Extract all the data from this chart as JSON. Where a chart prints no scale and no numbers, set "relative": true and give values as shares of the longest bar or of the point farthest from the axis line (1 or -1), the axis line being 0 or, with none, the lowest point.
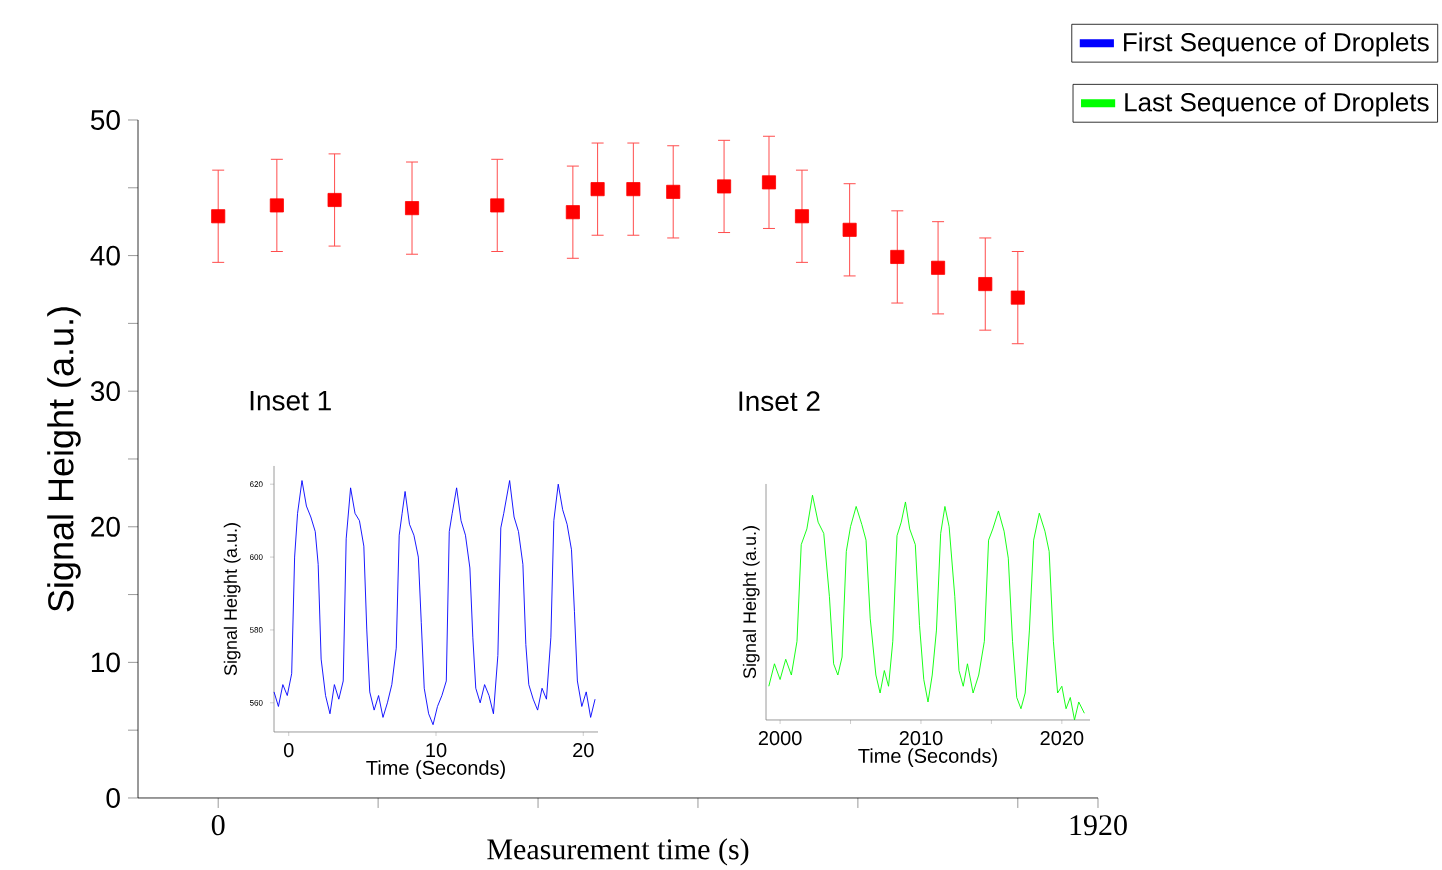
{
  "chart_data": [
    {
      "type": "scatter",
      "xlabel": "Measurement time (s)",
      "ylabel": "Signal Height (a.u.)",
      "color": "#ff0000",
      "marker": "square",
      "x": [
        0,
        128,
        254,
        423,
        609,
        774,
        828,
        906,
        993,
        1104,
        1202,
        1274,
        1378,
        1482,
        1571,
        1674,
        1745
      ],
      "values": [
        42.9,
        43.7,
        44.1,
        43.5,
        43.7,
        43.2,
        44.9,
        44.9,
        44.7,
        45.1,
        45.4,
        42.9,
        41.9,
        39.9,
        39.1,
        37.9,
        36.9
      ],
      "errors": [
        3.4,
        3.4,
        3.4,
        3.4,
        3.4,
        3.4,
        3.4,
        3.4,
        3.4,
        3.4,
        3.4,
        3.4,
        3.4,
        3.4,
        3.4,
        3.4,
        3.4
      ],
      "xlim": [
        -175,
        1920
      ],
      "xticks": [
        0,
        {
          "value": 349,
          "label": null
        },
        {
          "value": 698,
          "label": null
        },
        {
          "value": 1047,
          "label": null
        },
        {
          "value": 1396,
          "label": null
        },
        {
          "value": 1745,
          "label": null
        },
        1920
      ],
      "ylim": [
        0,
        50
      ],
      "yticks": [
        0,
        {
          "value": 5,
          "label": null
        },
        10,
        {
          "value": 15,
          "label": null
        },
        20,
        {
          "value": 25,
          "label": null
        },
        30,
        {
          "value": 35,
          "label": null
        },
        40,
        {
          "value": 45,
          "label": null
        },
        50
      ]
    },
    {
      "type": "line",
      "title": "Inset 1",
      "xlabel": "Time (Seconds)",
      "ylabel": "Signal Height (a.u.)",
      "legend": "top right",
      "series": [
        {
          "name": "First Sequence of Droplets",
          "color": "#0000ff",
          "x": [
            -1,
            -0.7,
            -0.4,
            -0.1,
            0.2,
            0.4,
            0.6,
            0.9,
            1.2,
            1.5,
            1.8,
            2.0,
            2.2,
            2.5,
            2.8,
            3.1,
            3.4,
            3.7,
            3.9,
            4.2,
            4.5,
            4.8,
            5.1,
            5.3,
            5.5,
            5.8,
            6.1,
            6.4,
            6.7,
            7.0,
            7.3,
            7.5,
            7.7,
            7.9,
            8.2,
            8.5,
            8.8,
            9.0,
            9.2,
            9.5,
            9.8,
            10.1,
            10.4,
            10.7,
            10.9,
            11.1,
            11.4,
            11.7,
            12.0,
            12.3,
            12.5,
            12.7,
            13.0,
            13.3,
            13.6,
            13.9,
            14.2,
            14.4,
            14.6,
            15.0,
            15.3,
            15.6,
            15.9,
            16.1,
            16.3,
            16.6,
            16.9,
            17.2,
            17.5,
            17.8,
            18.0,
            18.3,
            18.6,
            18.9,
            19.2,
            19.4,
            19.6,
            19.9,
            20.2,
            20.5,
            20.8
          ],
          "values": [
            563,
            559,
            565,
            562,
            568,
            600,
            612,
            621,
            614,
            611,
            607,
            598,
            572,
            562,
            557,
            565,
            561,
            566,
            605,
            619,
            612,
            610,
            603,
            580,
            563,
            558,
            562,
            556,
            560,
            565,
            575,
            606,
            612,
            618,
            609,
            606,
            600,
            582,
            564,
            557,
            554,
            559,
            562,
            566,
            607,
            612,
            619,
            610,
            606,
            597,
            578,
            564,
            560,
            565,
            562,
            557,
            573,
            608,
            612,
            621,
            611,
            607,
            598,
            576,
            565,
            561,
            558,
            564,
            561,
            578,
            610,
            620,
            613,
            609,
            602,
            585,
            566,
            559,
            563,
            556,
            561
          ]
        }
      ],
      "xlim": [
        -1,
        21
      ],
      "ylim": [
        552,
        625
      ],
      "xticks": [
        0,
        10,
        20
      ],
      "yticks": [
        560,
        580,
        600,
        620
      ]
    },
    {
      "type": "line",
      "title": "Inset 2",
      "xlabel": "Time (Seconds)",
      "ylabel": "Signal Height (a.u.)",
      "legend": "top right",
      "relative": true,
      "series": [
        {
          "name": "Last Sequence of Droplets",
          "color": "#00ff00",
          "x": [
            1999.2,
            1999.6,
            2000.0,
            2000.4,
            2000.8,
            2001.2,
            2001.5,
            2001.9,
            2002.3,
            2002.7,
            2003.1,
            2003.5,
            2003.8,
            2004.1,
            2004.4,
            2004.7,
            2005.0,
            2005.4,
            2005.8,
            2006.1,
            2006.4,
            2006.8,
            2007.1,
            2007.4,
            2007.7,
            2008.0,
            2008.3,
            2008.6,
            2008.9,
            2009.2,
            2009.6,
            2009.9,
            2010.2,
            2010.5,
            2010.8,
            2011.1,
            2011.4,
            2011.7,
            2012.0,
            2012.4,
            2012.7,
            2013.0,
            2013.3,
            2013.7,
            2014.1,
            2014.5,
            2014.8,
            2015.1,
            2015.5,
            2015.9,
            2016.2,
            2016.5,
            2016.8,
            2017.1,
            2017.4,
            2017.7,
            2018.0,
            2018.4,
            2018.8,
            2019.1,
            2019.4,
            2019.7,
            2020.0,
            2020.3,
            2020.6,
            2020.9,
            2021.2,
            2021.6
          ],
          "values": [
            0.15,
            0.25,
            0.18,
            0.27,
            0.2,
            0.35,
            0.78,
            0.85,
            1.0,
            0.88,
            0.83,
            0.55,
            0.25,
            0.2,
            0.28,
            0.75,
            0.86,
            0.95,
            0.87,
            0.8,
            0.45,
            0.2,
            0.12,
            0.22,
            0.15,
            0.35,
            0.82,
            0.88,
            0.97,
            0.85,
            0.78,
            0.42,
            0.18,
            0.08,
            0.2,
            0.4,
            0.83,
            0.95,
            0.86,
            0.55,
            0.22,
            0.15,
            0.25,
            0.12,
            0.2,
            0.35,
            0.8,
            0.85,
            0.93,
            0.84,
            0.72,
            0.35,
            0.1,
            0.05,
            0.12,
            0.4,
            0.8,
            0.92,
            0.84,
            0.75,
            0.35,
            0.12,
            0.15,
            0.05,
            0.1,
            0.0,
            0.08,
            0.03
          ]
        }
      ],
      "xlim": [
        1999,
        2022
      ],
      "xticks": [
        2000,
        {
          "value": 2005,
          "label": null
        },
        2010,
        {
          "value": 2015,
          "label": null
        },
        2020
      ]
    }
  ]
}
